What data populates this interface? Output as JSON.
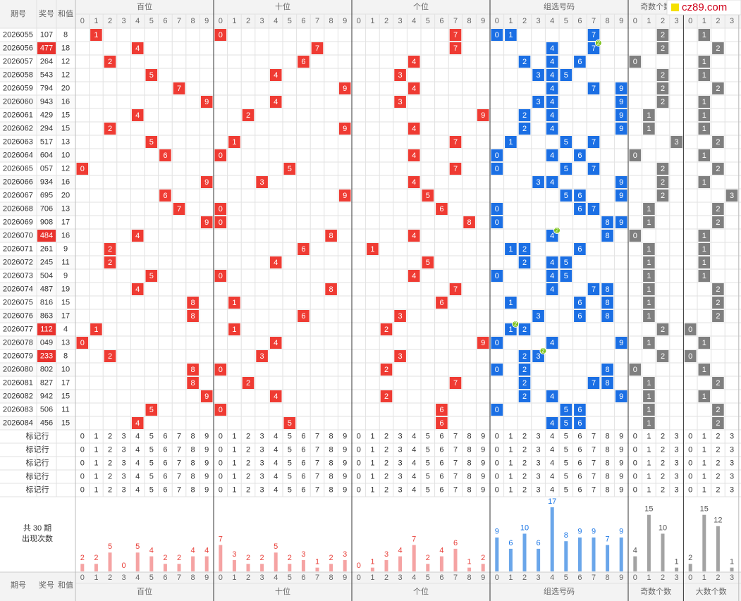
{
  "header": {
    "issue": "期号",
    "number": "奖号",
    "sum": "和值",
    "sections": [
      "百位",
      "十位",
      "个位",
      "组选号码",
      "奇数个数",
      "大数个数"
    ],
    "digits": [
      0,
      1,
      2,
      3,
      4,
      5,
      6,
      7,
      8,
      9
    ],
    "counts": [
      0,
      1,
      2,
      3
    ]
  },
  "rows": [
    {
      "issue": "2026055",
      "number": "107",
      "sum": 8,
      "digits": [
        1,
        0,
        7
      ],
      "odd": 2,
      "big": 1
    },
    {
      "issue": "2026056",
      "number": "477",
      "sum": 18,
      "digits": [
        4,
        7,
        7
      ],
      "odd": 2,
      "big": 2,
      "repeat_count": 2
    },
    {
      "issue": "2026057",
      "number": "264",
      "sum": 12,
      "digits": [
        2,
        6,
        4
      ],
      "odd": 0,
      "big": 1
    },
    {
      "issue": "2026058",
      "number": "543",
      "sum": 12,
      "digits": [
        5,
        4,
        3
      ],
      "odd": 2,
      "big": 1
    },
    {
      "issue": "2026059",
      "number": "794",
      "sum": 20,
      "digits": [
        7,
        9,
        4
      ],
      "odd": 2,
      "big": 2
    },
    {
      "issue": "2026060",
      "number": "943",
      "sum": 16,
      "digits": [
        9,
        4,
        3
      ],
      "odd": 2,
      "big": 1
    },
    {
      "issue": "2026061",
      "number": "429",
      "sum": 15,
      "digits": [
        4,
        2,
        9
      ],
      "odd": 1,
      "big": 1
    },
    {
      "issue": "2026062",
      "number": "294",
      "sum": 15,
      "digits": [
        2,
        9,
        4
      ],
      "odd": 1,
      "big": 1
    },
    {
      "issue": "2026063",
      "number": "517",
      "sum": 13,
      "digits": [
        5,
        1,
        7
      ],
      "odd": 3,
      "big": 2
    },
    {
      "issue": "2026064",
      "number": "604",
      "sum": 10,
      "digits": [
        6,
        0,
        4
      ],
      "odd": 0,
      "big": 1
    },
    {
      "issue": "2026065",
      "number": "057",
      "sum": 12,
      "digits": [
        0,
        5,
        7
      ],
      "odd": 2,
      "big": 2
    },
    {
      "issue": "2026066",
      "number": "934",
      "sum": 16,
      "digits": [
        9,
        3,
        4
      ],
      "odd": 2,
      "big": 1
    },
    {
      "issue": "2026067",
      "number": "695",
      "sum": 20,
      "digits": [
        6,
        9,
        5
      ],
      "odd": 2,
      "big": 3
    },
    {
      "issue": "2026068",
      "number": "706",
      "sum": 13,
      "digits": [
        7,
        0,
        6
      ],
      "odd": 1,
      "big": 2
    },
    {
      "issue": "2026069",
      "number": "908",
      "sum": 17,
      "digits": [
        9,
        0,
        8
      ],
      "odd": 1,
      "big": 2
    },
    {
      "issue": "2026070",
      "number": "484",
      "sum": 16,
      "digits": [
        4,
        8,
        4
      ],
      "odd": 0,
      "big": 1,
      "repeat_count": 2
    },
    {
      "issue": "2026071",
      "number": "261",
      "sum": 9,
      "digits": [
        2,
        6,
        1
      ],
      "odd": 1,
      "big": 1
    },
    {
      "issue": "2026072",
      "number": "245",
      "sum": 11,
      "digits": [
        2,
        4,
        5
      ],
      "odd": 1,
      "big": 1
    },
    {
      "issue": "2026073",
      "number": "504",
      "sum": 9,
      "digits": [
        5,
        0,
        4
      ],
      "odd": 1,
      "big": 1
    },
    {
      "issue": "2026074",
      "number": "487",
      "sum": 19,
      "digits": [
        4,
        8,
        7
      ],
      "odd": 1,
      "big": 2
    },
    {
      "issue": "2026075",
      "number": "816",
      "sum": 15,
      "digits": [
        8,
        1,
        6
      ],
      "odd": 1,
      "big": 2
    },
    {
      "issue": "2026076",
      "number": "863",
      "sum": 17,
      "digits": [
        8,
        6,
        3
      ],
      "odd": 1,
      "big": 2
    },
    {
      "issue": "2026077",
      "number": "112",
      "sum": 4,
      "digits": [
        1,
        1,
        2
      ],
      "odd": 2,
      "big": 0,
      "repeat_count": 2
    },
    {
      "issue": "2026078",
      "number": "049",
      "sum": 13,
      "digits": [
        0,
        4,
        9
      ],
      "odd": 1,
      "big": 1
    },
    {
      "issue": "2026079",
      "number": "233",
      "sum": 8,
      "digits": [
        2,
        3,
        3
      ],
      "odd": 2,
      "big": 0,
      "repeat_count": 2
    },
    {
      "issue": "2026080",
      "number": "802",
      "sum": 10,
      "digits": [
        8,
        0,
        2
      ],
      "odd": 0,
      "big": 1
    },
    {
      "issue": "2026081",
      "number": "827",
      "sum": 17,
      "digits": [
        8,
        2,
        7
      ],
      "odd": 1,
      "big": 2
    },
    {
      "issue": "2026082",
      "number": "942",
      "sum": 15,
      "digits": [
        9,
        4,
        2
      ],
      "odd": 1,
      "big": 1
    },
    {
      "issue": "2026083",
      "number": "506",
      "sum": 11,
      "digits": [
        5,
        0,
        6
      ],
      "odd": 1,
      "big": 2
    },
    {
      "issue": "2026084",
      "number": "456",
      "sum": 15,
      "digits": [
        4,
        5,
        6
      ],
      "odd": 1,
      "big": 2
    }
  ],
  "marker_label": "标记行",
  "stats": {
    "label_1": "共 30 期",
    "label_2": "出现次数",
    "hundreds": [
      2,
      2,
      5,
      0,
      5,
      4,
      2,
      2,
      4,
      4
    ],
    "tens": [
      7,
      3,
      2,
      2,
      5,
      2,
      3,
      1,
      2,
      3
    ],
    "units": [
      0,
      1,
      3,
      4,
      7,
      2,
      4,
      6,
      1,
      2
    ],
    "group": [
      9,
      6,
      10,
      6,
      17,
      8,
      9,
      9,
      7,
      9
    ],
    "odd": [
      4,
      15,
      10,
      1
    ],
    "big": [
      2,
      15,
      12,
      1
    ]
  },
  "logo": "cz89.com"
}
